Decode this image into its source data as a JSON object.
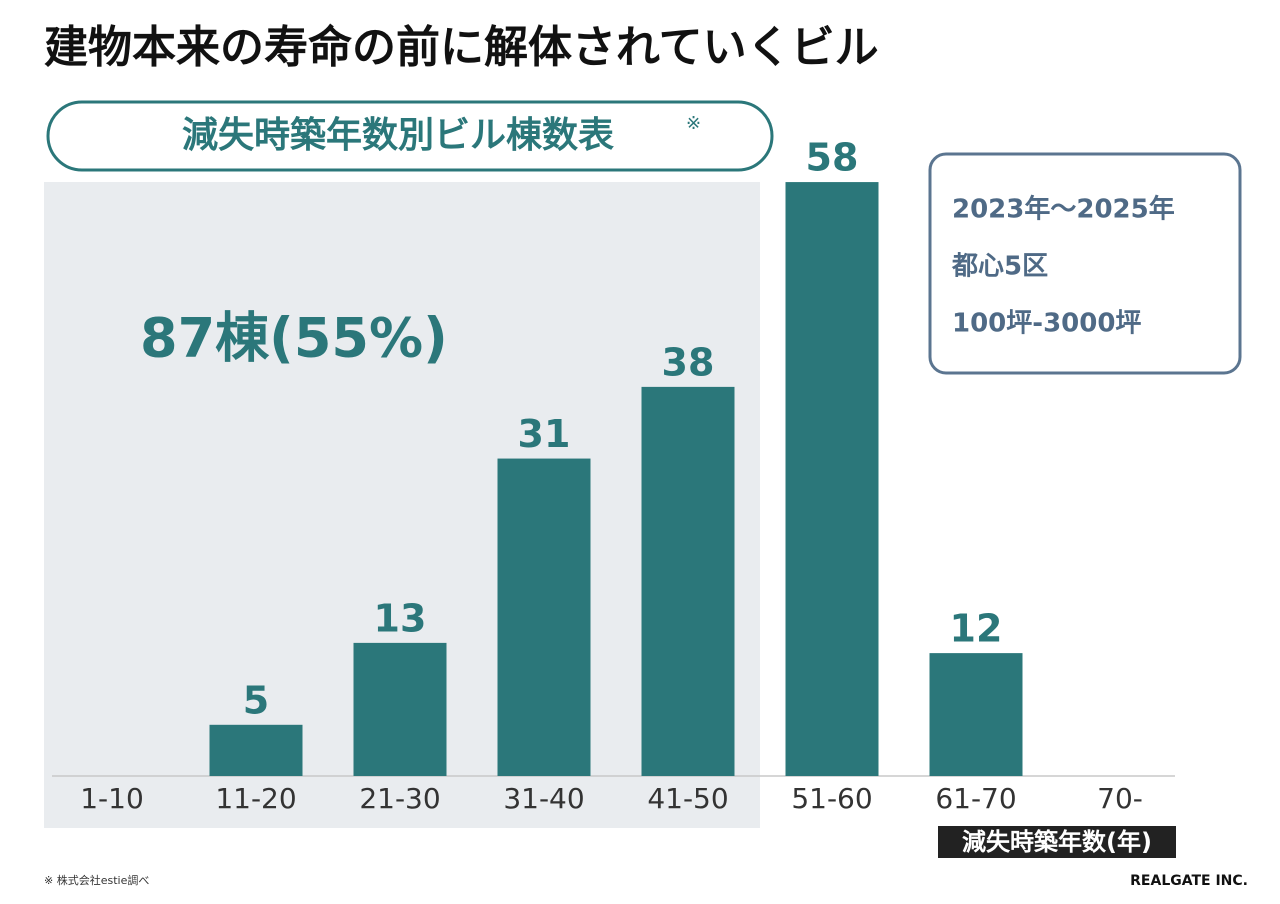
{
  "chart_data": {
    "type": "bar",
    "title": "建物本来の寿命の前に解体されていくビル",
    "subtitle": "減失時築年数別ビル棟数表",
    "subtitle_mark": "※",
    "annotation": "87棟(55%)",
    "info_box": [
      "2023年〜2025年",
      "都心5区",
      "100坪-3000坪"
    ],
    "x_label": "減失時築年数(年)",
    "categories": [
      "1-10",
      "11-20",
      "21-30",
      "31-40",
      "41-50",
      "51-60",
      "61-70",
      "70-"
    ],
    "values": [
      null,
      5,
      13,
      31,
      38,
      58,
      12,
      null
    ],
    "color": "#2b777a",
    "footnote": "※ 株式会社estie調べ",
    "credit": "REALGATE INC."
  }
}
